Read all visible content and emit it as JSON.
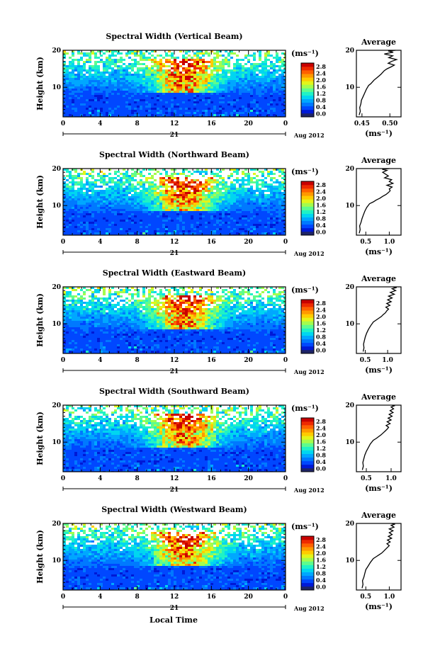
{
  "figure": {
    "y_axis_label": "Height (km)",
    "x_axis_label": "Local Time",
    "x_ticks": [
      "0",
      "4",
      "8",
      "12",
      "16",
      "20",
      "0"
    ],
    "day_label": "21",
    "month_year_label": "Aug 2012",
    "colorbar_unit": "(ms⁻¹)",
    "colorbar_ticks": [
      "0.0",
      "0.4",
      "0.8",
      "1.2",
      "1.6",
      "2.0",
      "2.4",
      "2.8"
    ],
    "colorbar_colors": [
      "#1e2466",
      "#0019d6",
      "#0047ff",
      "#0079ff",
      "#00a7ff",
      "#00d6f0",
      "#1ff2c6",
      "#5efc8e",
      "#a4fc4d",
      "#e3f51a",
      "#ffcc00",
      "#ff9900",
      "#ff6100",
      "#ee2a00",
      "#c80000"
    ],
    "height_ticks": [
      "20",
      "10"
    ],
    "average_title": "Average",
    "average_unit": "(ms⁻¹)"
  },
  "chart_data": [
    {
      "type": "heatmap",
      "title": "Spectral Width (Vertical Beam)",
      "xlabel": "",
      "ylabel": "Height (km)",
      "xlim": [
        0,
        24
      ],
      "ylim": [
        2,
        20
      ],
      "colorbar_range": [
        0.0,
        2.8
      ]
    },
    {
      "type": "line",
      "title": "Average",
      "xlabel": "(ms⁻¹)",
      "ylabel": "",
      "xticks": [
        "0.45",
        "0.50"
      ],
      "xlim": [
        0.44,
        0.52
      ],
      "ylim": [
        2,
        20
      ],
      "series": [
        {
          "x": [
            0.445,
            0.447,
            0.446,
            0.448,
            0.449,
            0.452,
            0.455,
            0.458,
            0.462,
            0.466,
            0.469,
            0.472,
            0.476,
            0.48,
            0.484,
            0.487,
            0.49,
            0.495,
            0.502,
            0.508,
            0.497,
            0.503,
            0.512,
            0.498,
            0.505,
            0.49,
            0.506,
            0.497,
            0.51
          ],
          "y": [
            2.5,
            3.5,
            4.5,
            5.5,
            6.5,
            7.5,
            8.5,
            9.5,
            10.5,
            11,
            11.5,
            12,
            12.5,
            13,
            13.5,
            14,
            14.5,
            15,
            15.5,
            16,
            16.5,
            17,
            17.5,
            18,
            18.5,
            19,
            19.5,
            19.8,
            20
          ]
        }
      ]
    },
    {
      "type": "heatmap",
      "title": "Spectral Width (Northward Beam)",
      "xlabel": "",
      "ylabel": "Height (km)",
      "xlim": [
        0,
        24
      ],
      "ylim": [
        2,
        20
      ],
      "colorbar_range": [
        0.0,
        2.8
      ]
    },
    {
      "type": "line",
      "title": "Average",
      "xlabel": "(ms⁻¹)",
      "ylabel": "",
      "xticks": [
        "0.5",
        "1.0"
      ],
      "xlim": [
        0.3,
        1.25
      ],
      "ylim": [
        2,
        20
      ],
      "series": [
        {
          "x": [
            0.36,
            0.38,
            0.37,
            0.4,
            0.42,
            0.45,
            0.48,
            0.52,
            0.58,
            0.66,
            0.72,
            0.8,
            0.86,
            0.93,
            0.98,
            1.02,
            1.0,
            1.06,
            0.95,
            1.08,
            1.0,
            1.05,
            0.9,
            0.98,
            0.92,
            0.86,
            0.95,
            0.85,
            1.0
          ],
          "y": [
            2.5,
            3.5,
            4.5,
            5.5,
            6.5,
            7.5,
            8.5,
            9.5,
            10.5,
            11,
            11.5,
            12,
            12.5,
            13,
            13.5,
            14,
            14.5,
            15,
            15.5,
            16,
            16.5,
            17,
            17.5,
            18,
            18.5,
            19,
            19.5,
            19.8,
            20
          ]
        }
      ]
    },
    {
      "type": "heatmap",
      "title": "Spectral Width (Eastward Beam)",
      "xlabel": "",
      "ylabel": "Height (km)",
      "xlim": [
        0,
        24
      ],
      "ylim": [
        2,
        20
      ],
      "colorbar_range": [
        0.0,
        2.8
      ]
    },
    {
      "type": "line",
      "title": "Average",
      "xlabel": "(ms⁻¹)",
      "ylabel": "",
      "xticks": [
        "0.5",
        "1.0"
      ],
      "xlim": [
        0.3,
        1.3
      ],
      "ylim": [
        2,
        20
      ],
      "series": [
        {
          "x": [
            0.45,
            0.47,
            0.46,
            0.48,
            0.5,
            0.53,
            0.57,
            0.62,
            0.68,
            0.74,
            0.8,
            0.86,
            0.9,
            0.95,
            0.98,
            1.02,
            0.96,
            1.05,
            0.98,
            1.08,
            1.0,
            1.1,
            1.02,
            1.15,
            1.06,
            1.18,
            1.1,
            1.2,
            1.12
          ],
          "y": [
            2.5,
            3.5,
            4.5,
            5.5,
            6.5,
            7.5,
            8.5,
            9.5,
            10.5,
            11,
            11.5,
            12,
            12.5,
            13,
            13.5,
            14,
            14.5,
            15,
            15.5,
            16,
            16.5,
            17,
            17.5,
            18,
            18.5,
            19,
            19.5,
            19.8,
            20
          ]
        }
      ]
    },
    {
      "type": "heatmap",
      "title": "Spectral Width (Southward Beam)",
      "xlabel": "",
      "ylabel": "Height (km)",
      "xlim": [
        0,
        24
      ],
      "ylim": [
        2,
        20
      ],
      "colorbar_range": [
        0.0,
        2.8
      ]
    },
    {
      "type": "line",
      "title": "Average",
      "xlabel": "(ms⁻¹)",
      "ylabel": "",
      "xticks": [
        "0.5",
        "1.0"
      ],
      "xlim": [
        0.3,
        1.2
      ],
      "ylim": [
        2,
        20
      ],
      "series": [
        {
          "x": [
            0.42,
            0.44,
            0.43,
            0.45,
            0.47,
            0.5,
            0.54,
            0.58,
            0.64,
            0.7,
            0.75,
            0.8,
            0.84,
            0.88,
            0.92,
            0.95,
            0.9,
            0.98,
            0.92,
            1.0,
            0.94,
            1.02,
            0.96,
            1.04,
            0.98,
            1.05,
            1.0,
            1.06,
            1.02
          ],
          "y": [
            2.5,
            3.5,
            4.5,
            5.5,
            6.5,
            7.5,
            8.5,
            9.5,
            10.5,
            11,
            11.5,
            12,
            12.5,
            13,
            13.5,
            14,
            14.5,
            15,
            15.5,
            16,
            16.5,
            17,
            17.5,
            18,
            18.5,
            19,
            19.5,
            19.8,
            20
          ]
        }
      ]
    },
    {
      "type": "heatmap",
      "title": "Spectral Width (Westward Beam)",
      "xlabel": "Local Time",
      "ylabel": "Height (km)",
      "xlim": [
        0,
        24
      ],
      "ylim": [
        2,
        20
      ],
      "colorbar_range": [
        0.0,
        2.8
      ]
    },
    {
      "type": "line",
      "title": "Average",
      "xlabel": "(ms⁻¹)",
      "ylabel": "",
      "xticks": [
        "0.5",
        "1.0"
      ],
      "xlim": [
        0.3,
        1.25
      ],
      "ylim": [
        2,
        20
      ],
      "series": [
        {
          "x": [
            0.42,
            0.44,
            0.43,
            0.46,
            0.48,
            0.5,
            0.55,
            0.6,
            0.66,
            0.72,
            0.78,
            0.84,
            0.88,
            0.92,
            0.96,
            1.0,
            0.95,
            1.02,
            0.96,
            1.05,
            0.98,
            1.06,
            1.0,
            1.08,
            1.0,
            1.1,
            1.04,
            1.12,
            1.05
          ],
          "y": [
            2.5,
            3.5,
            4.5,
            5.5,
            6.5,
            7.5,
            8.5,
            9.5,
            10.5,
            11,
            11.5,
            12,
            12.5,
            13,
            13.5,
            14,
            14.5,
            15,
            15.5,
            16,
            16.5,
            17,
            17.5,
            18,
            18.5,
            19,
            19.5,
            19.8,
            20
          ]
        }
      ]
    }
  ]
}
